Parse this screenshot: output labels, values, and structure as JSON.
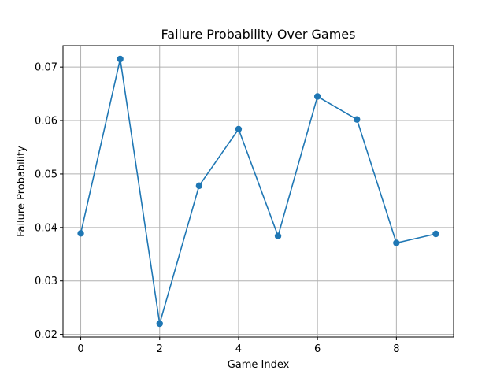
{
  "chart_data": {
    "type": "line",
    "title": "Failure Probability Over Games",
    "xlabel": "Game Index",
    "ylabel": "Failure Probability",
    "x": [
      0,
      1,
      2,
      3,
      4,
      5,
      6,
      7,
      8,
      9
    ],
    "series": [
      {
        "values": [
          0.0389,
          0.0715,
          0.022,
          0.0478,
          0.0584,
          0.0384,
          0.0645,
          0.0602,
          0.0371,
          0.0388
        ]
      }
    ],
    "xlim": [
      -0.45,
      9.45
    ],
    "ylim": [
      0.0195,
      0.074
    ],
    "xticks": [
      0,
      2,
      4,
      6,
      8
    ],
    "yticks": [
      0.02,
      0.03,
      0.04,
      0.05,
      0.06,
      0.07
    ],
    "xtick_labels": [
      "0",
      "2",
      "4",
      "6",
      "8"
    ],
    "ytick_labels": [
      "0.02",
      "0.03",
      "0.04",
      "0.05",
      "0.06",
      "0.07"
    ],
    "grid": true,
    "marker": "circle",
    "colors": {
      "line": "#1f77b4",
      "grid": "#b0b0b0",
      "axis": "#000000"
    }
  }
}
